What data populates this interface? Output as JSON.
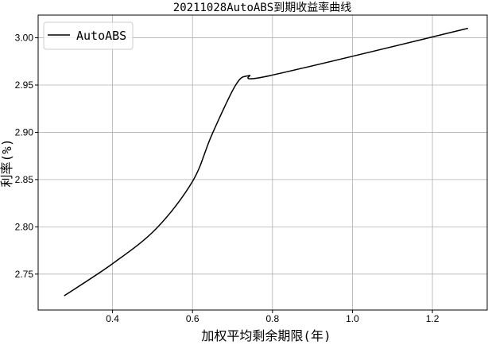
{
  "chart_data": {
    "type": "line",
    "title": "20211028AutoABS到期收益率曲线",
    "xlabel": "加权平均剩余期限(年)",
    "ylabel": "利率(%)",
    "xlim": [
      0.214,
      1.337
    ],
    "ylim": [
      2.712,
      3.024
    ],
    "xticks": [
      0.4,
      0.6,
      0.8,
      1.0,
      1.2
    ],
    "xtick_labels": [
      "0.4",
      "0.6",
      "0.8",
      "1.0",
      "1.2"
    ],
    "yticks": [
      2.75,
      2.8,
      2.85,
      2.9,
      2.95,
      3.0
    ],
    "ytick_labels": [
      "2.75",
      "2.80",
      "2.85",
      "2.90",
      "2.95",
      "3.00"
    ],
    "grid": true,
    "legend": "top-left",
    "series": [
      {
        "name": "AutoABS",
        "color": "#000000",
        "x": [
          0.279,
          0.4,
          0.509,
          0.6,
          0.648,
          0.708,
          0.741,
          0.794,
          1.289
        ],
        "y": [
          2.727,
          2.761,
          2.798,
          2.848,
          2.897,
          2.95,
          2.96,
          2.96,
          3.01
        ]
      }
    ]
  }
}
